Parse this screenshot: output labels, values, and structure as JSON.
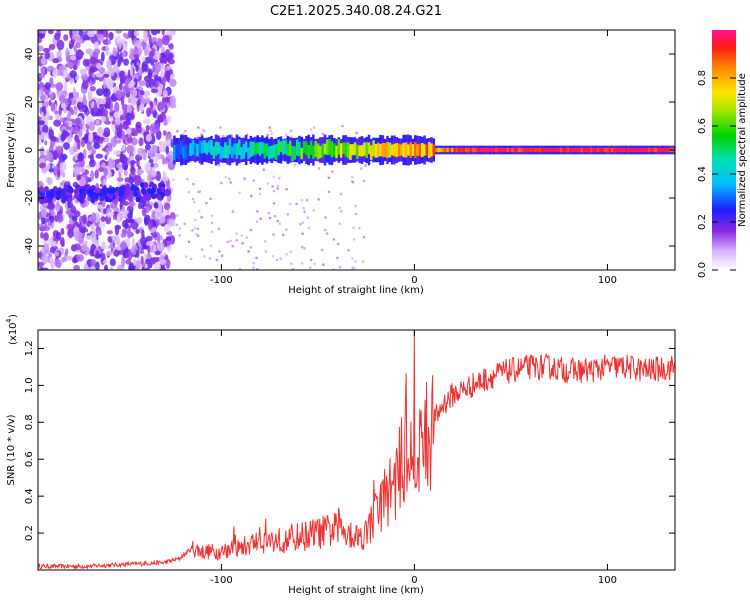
{
  "title": "C2E1.2025.340.08.24.G21",
  "chart_data": [
    {
      "type": "heatmap",
      "xlabel": "Height of straight line (km)",
      "ylabel": "Frequency (Hz)",
      "xlim": [
        -195,
        135
      ],
      "ylim": [
        -50,
        50
      ],
      "xticks": [
        "-100",
        "0",
        "100"
      ],
      "yticks": [
        "-40",
        "-20",
        "0",
        "20",
        "40"
      ],
      "colorbar": {
        "label": "Normalized spectral amplitude",
        "range": [
          0,
          1
        ],
        "ticks": [
          "0.0",
          "0.2",
          "0.4",
          "0.6",
          "0.8"
        ]
      },
      "features": [
        {
          "name": "noise region",
          "x_range": [
            -195,
            -125
          ],
          "freq_range": [
            -50,
            50
          ],
          "amplitude": 0.15
        },
        {
          "name": "main signal band",
          "x_range": [
            -125,
            135
          ],
          "center_freq": 0,
          "amplitude_range": [
            0.3,
            0.95
          ]
        },
        {
          "name": "secondary band",
          "x_range": [
            -195,
            -130
          ],
          "center_freq": -18,
          "amplitude": 0.2
        }
      ]
    },
    {
      "type": "line",
      "xlabel": "Height of straight line (km)",
      "ylabel": "SNR (10 * v/v)",
      "yscale_label": "(x10",
      "yscale_exp": "4",
      "xlim": [
        -195,
        135
      ],
      "ylim": [
        0,
        1.3
      ],
      "xticks": [
        "-100",
        "0",
        "100"
      ],
      "yticks": [
        "0.2",
        "0.4",
        "0.6",
        "0.8",
        "1.0",
        "1.2"
      ],
      "series": [
        {
          "name": "SNR",
          "color": "#ee3333",
          "x": [
            -195,
            -170,
            -150,
            -130,
            -122,
            -115,
            -110,
            -100,
            -90,
            -80,
            -70,
            -60,
            -50,
            -40,
            -35,
            -30,
            -25,
            -20,
            -15,
            -10,
            -5,
            0,
            5,
            10,
            15,
            20,
            30,
            40,
            50,
            60,
            70,
            80,
            90,
            100,
            110,
            120,
            135
          ],
          "values": [
            0.02,
            0.02,
            0.03,
            0.04,
            0.06,
            0.12,
            0.1,
            0.1,
            0.12,
            0.16,
            0.16,
            0.18,
            0.2,
            0.22,
            0.22,
            0.18,
            0.2,
            0.3,
            0.4,
            0.48,
            0.62,
            0.62,
            0.68,
            0.8,
            0.9,
            0.95,
            1.0,
            1.05,
            1.08,
            1.1,
            1.1,
            1.08,
            1.08,
            1.1,
            1.1,
            1.08,
            1.1
          ]
        }
      ]
    }
  ]
}
